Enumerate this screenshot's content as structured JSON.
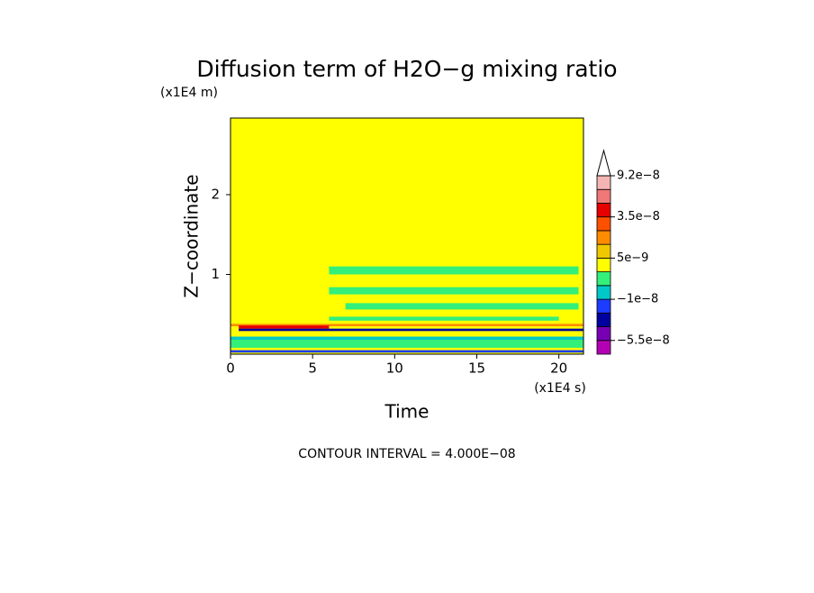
{
  "chart_data": {
    "type": "contour",
    "title": "Diffusion term of H2O−g mixing ratio",
    "y_unit": "(x1E4 m)",
    "x_unit": "(x1E4 s)",
    "x_label": "Time",
    "y_label": "Z−coordinate",
    "note": "CONTOUR INTERVAL = 4.000E−08",
    "xlim": [
      0,
      21.5
    ],
    "ylim": [
      0,
      2.96
    ],
    "xticks": [
      0,
      5,
      10,
      15,
      20
    ],
    "yticks": [
      1,
      2
    ],
    "colorbar": {
      "bounds": [
        -7e-08,
        -5.5e-08,
        -4e-08,
        -2.5e-08,
        -1e-08,
        -5e-09,
        0,
        5e-09,
        1e-08,
        2e-08,
        3.5e-08,
        5e-08,
        7e-08,
        9.2e-08
      ],
      "colors": [
        "#b400b4",
        "#7800b4",
        "#0000a0",
        "#1e3cff",
        "#00c8c8",
        "#32f07a",
        "#ffff00",
        "#f0c800",
        "#ff8c00",
        "#ff5000",
        "#e60000",
        "#f07878",
        "#f5b4b4"
      ],
      "over_color": "#ffffff",
      "ticks": [
        {
          "value": -5.5e-08,
          "label": "−5.5e−8"
        },
        {
          "value": -1e-08,
          "label": "−1e−8"
        },
        {
          "value": 5e-09,
          "label": "5e−9"
        },
        {
          "value": 3.5e-08,
          "label": "3.5e−8"
        },
        {
          "value": 9.2e-08,
          "label": "9.2e−8"
        }
      ]
    },
    "patches": [
      {
        "x0": 0,
        "x1": 21.5,
        "y0": 0,
        "y1": 2.96,
        "value": 2e-09
      },
      {
        "x0": 6,
        "x1": 21.2,
        "y0": 1.0,
        "y1": 1.1,
        "value": -2e-09
      },
      {
        "x0": 6,
        "x1": 21.2,
        "y0": 0.75,
        "y1": 0.84,
        "value": -2e-09
      },
      {
        "x0": 7,
        "x1": 21.2,
        "y0": 0.56,
        "y1": 0.64,
        "value": -2e-09
      },
      {
        "x0": 6,
        "x1": 20,
        "y0": 0.42,
        "y1": 0.47,
        "value": -2e-09
      },
      {
        "x0": 0,
        "x1": 21.5,
        "y0": 0.35,
        "y1": 0.38,
        "value": 1.5e-08
      },
      {
        "x0": 0.5,
        "x1": 6,
        "y0": 0.32,
        "y1": 0.36,
        "value": 4e-08
      },
      {
        "x0": 0.5,
        "x1": 21.5,
        "y0": 0.29,
        "y1": 0.32,
        "value": -3e-08
      },
      {
        "x0": 0,
        "x1": 21.5,
        "y0": 0.22,
        "y1": 0.28,
        "value": 3e-09
      },
      {
        "x0": 0,
        "x1": 21.5,
        "y0": 0.18,
        "y1": 0.22,
        "value": -7e-09
      },
      {
        "x0": 0,
        "x1": 21.5,
        "y0": 0.08,
        "y1": 0.18,
        "value": -2e-09
      },
      {
        "x0": 0,
        "x1": 21.5,
        "y0": 0.02,
        "y1": 0.05,
        "value": -2e-08
      }
    ]
  }
}
